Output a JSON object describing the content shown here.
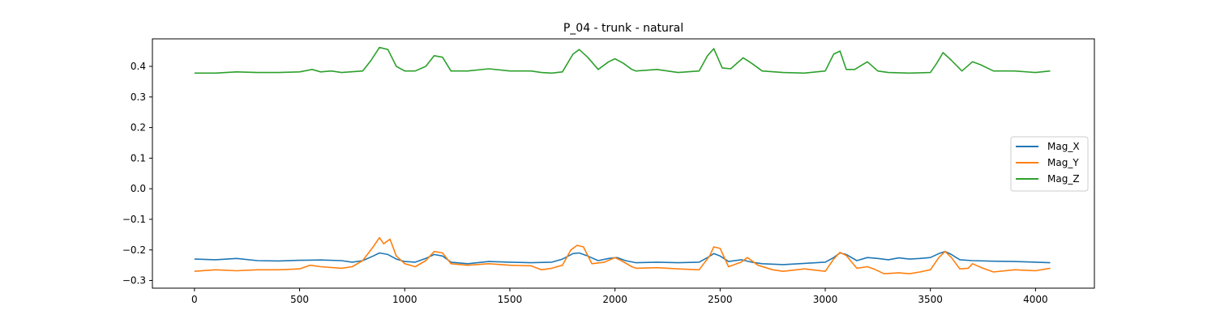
{
  "chart_data": {
    "type": "line",
    "title": "P_04 - trunk - natural",
    "xlabel": "",
    "ylabel": "",
    "xlim": [
      -200,
      4280
    ],
    "ylim": [
      -0.325,
      0.49
    ],
    "xticks": [
      0,
      500,
      1000,
      1500,
      2000,
      2500,
      3000,
      3500,
      4000
    ],
    "xtick_labels": [
      "0",
      "500",
      "1000",
      "1500",
      "2000",
      "2500",
      "3000",
      "3500",
      "4000"
    ],
    "yticks": [
      -0.3,
      -0.2,
      -0.1,
      0.0,
      0.1,
      0.2,
      0.3,
      0.4
    ],
    "ytick_labels": [
      "−0.3",
      "−0.2",
      "−0.1",
      "0.0",
      "0.1",
      "0.2",
      "0.3",
      "0.4"
    ],
    "grid": false,
    "legend_position": "center-right",
    "series": [
      {
        "name": "Mag_X",
        "color": "#1f77b4",
        "x": [
          0,
          100,
          200,
          300,
          400,
          500,
          600,
          700,
          750,
          800,
          850,
          880,
          920,
          960,
          1000,
          1050,
          1100,
          1140,
          1180,
          1220,
          1300,
          1400,
          1500,
          1600,
          1700,
          1750,
          1800,
          1830,
          1870,
          1920,
          1970,
          2010,
          2050,
          2100,
          2200,
          2300,
          2400,
          2440,
          2470,
          2500,
          2540,
          2600,
          2650,
          2700,
          2800,
          2900,
          3000,
          3040,
          3070,
          3100,
          3150,
          3200,
          3250,
          3300,
          3350,
          3400,
          3450,
          3500,
          3540,
          3570,
          3600,
          3640,
          3700,
          3800,
          3900,
          4000,
          4070
        ],
        "y": [
          -0.23,
          -0.232,
          -0.228,
          -0.235,
          -0.236,
          -0.234,
          -0.233,
          -0.235,
          -0.24,
          -0.235,
          -0.22,
          -0.21,
          -0.215,
          -0.23,
          -0.238,
          -0.24,
          -0.228,
          -0.215,
          -0.22,
          -0.24,
          -0.245,
          -0.238,
          -0.24,
          -0.242,
          -0.24,
          -0.23,
          -0.212,
          -0.21,
          -0.22,
          -0.235,
          -0.228,
          -0.225,
          -0.235,
          -0.242,
          -0.24,
          -0.242,
          -0.24,
          -0.225,
          -0.212,
          -0.22,
          -0.238,
          -0.232,
          -0.24,
          -0.245,
          -0.248,
          -0.244,
          -0.24,
          -0.225,
          -0.21,
          -0.215,
          -0.235,
          -0.225,
          -0.228,
          -0.232,
          -0.226,
          -0.23,
          -0.228,
          -0.225,
          -0.212,
          -0.205,
          -0.215,
          -0.232,
          -0.235,
          -0.237,
          -0.238,
          -0.24,
          -0.242
        ]
      },
      {
        "name": "Mag_Y",
        "color": "#ff7f0e",
        "x": [
          0,
          100,
          200,
          300,
          400,
          500,
          550,
          600,
          700,
          750,
          800,
          850,
          880,
          900,
          930,
          960,
          1000,
          1050,
          1100,
          1140,
          1180,
          1220,
          1300,
          1400,
          1500,
          1600,
          1650,
          1700,
          1750,
          1790,
          1820,
          1850,
          1890,
          1950,
          2000,
          2030,
          2080,
          2100,
          2200,
          2300,
          2400,
          2450,
          2470,
          2500,
          2540,
          2600,
          2630,
          2680,
          2750,
          2800,
          2900,
          3000,
          3040,
          3070,
          3100,
          3150,
          3200,
          3230,
          3280,
          3350,
          3400,
          3450,
          3500,
          3540,
          3570,
          3600,
          3640,
          3680,
          3700,
          3750,
          3800,
          3900,
          4000,
          4070
        ],
        "y": [
          -0.27,
          -0.265,
          -0.268,
          -0.265,
          -0.265,
          -0.262,
          -0.25,
          -0.255,
          -0.26,
          -0.255,
          -0.235,
          -0.19,
          -0.16,
          -0.18,
          -0.165,
          -0.22,
          -0.245,
          -0.255,
          -0.235,
          -0.205,
          -0.21,
          -0.245,
          -0.25,
          -0.245,
          -0.25,
          -0.252,
          -0.265,
          -0.26,
          -0.25,
          -0.2,
          -0.185,
          -0.19,
          -0.245,
          -0.24,
          -0.225,
          -0.235,
          -0.255,
          -0.26,
          -0.258,
          -0.262,
          -0.265,
          -0.22,
          -0.19,
          -0.195,
          -0.255,
          -0.24,
          -0.225,
          -0.25,
          -0.265,
          -0.27,
          -0.262,
          -0.27,
          -0.23,
          -0.208,
          -0.218,
          -0.26,
          -0.255,
          -0.262,
          -0.278,
          -0.275,
          -0.278,
          -0.272,
          -0.265,
          -0.225,
          -0.205,
          -0.225,
          -0.262,
          -0.26,
          -0.245,
          -0.26,
          -0.272,
          -0.265,
          -0.268,
          -0.26
        ]
      },
      {
        "name": "Mag_Z",
        "color": "#2ca02c",
        "x": [
          0,
          100,
          200,
          300,
          400,
          500,
          560,
          600,
          650,
          700,
          800,
          840,
          880,
          920,
          960,
          1000,
          1050,
          1100,
          1140,
          1180,
          1220,
          1300,
          1400,
          1500,
          1600,
          1650,
          1700,
          1750,
          1800,
          1830,
          1870,
          1920,
          1970,
          2000,
          2040,
          2080,
          2100,
          2200,
          2300,
          2400,
          2440,
          2470,
          2510,
          2550,
          2610,
          2650,
          2700,
          2800,
          2900,
          3000,
          3040,
          3070,
          3100,
          3140,
          3200,
          3250,
          3300,
          3400,
          3500,
          3530,
          3560,
          3600,
          3650,
          3700,
          3740,
          3800,
          3900,
          4000,
          4070
        ],
        "y": [
          0.378,
          0.378,
          0.382,
          0.38,
          0.38,
          0.382,
          0.39,
          0.382,
          0.385,
          0.38,
          0.385,
          0.42,
          0.462,
          0.455,
          0.4,
          0.385,
          0.385,
          0.4,
          0.435,
          0.43,
          0.385,
          0.385,
          0.392,
          0.385,
          0.385,
          0.38,
          0.378,
          0.382,
          0.44,
          0.455,
          0.43,
          0.39,
          0.415,
          0.425,
          0.41,
          0.39,
          0.385,
          0.39,
          0.38,
          0.385,
          0.435,
          0.458,
          0.395,
          0.392,
          0.428,
          0.41,
          0.385,
          0.38,
          0.378,
          0.385,
          0.44,
          0.45,
          0.39,
          0.39,
          0.415,
          0.385,
          0.38,
          0.378,
          0.38,
          0.41,
          0.445,
          0.42,
          0.385,
          0.415,
          0.405,
          0.385,
          0.385,
          0.38,
          0.385
        ]
      }
    ]
  }
}
